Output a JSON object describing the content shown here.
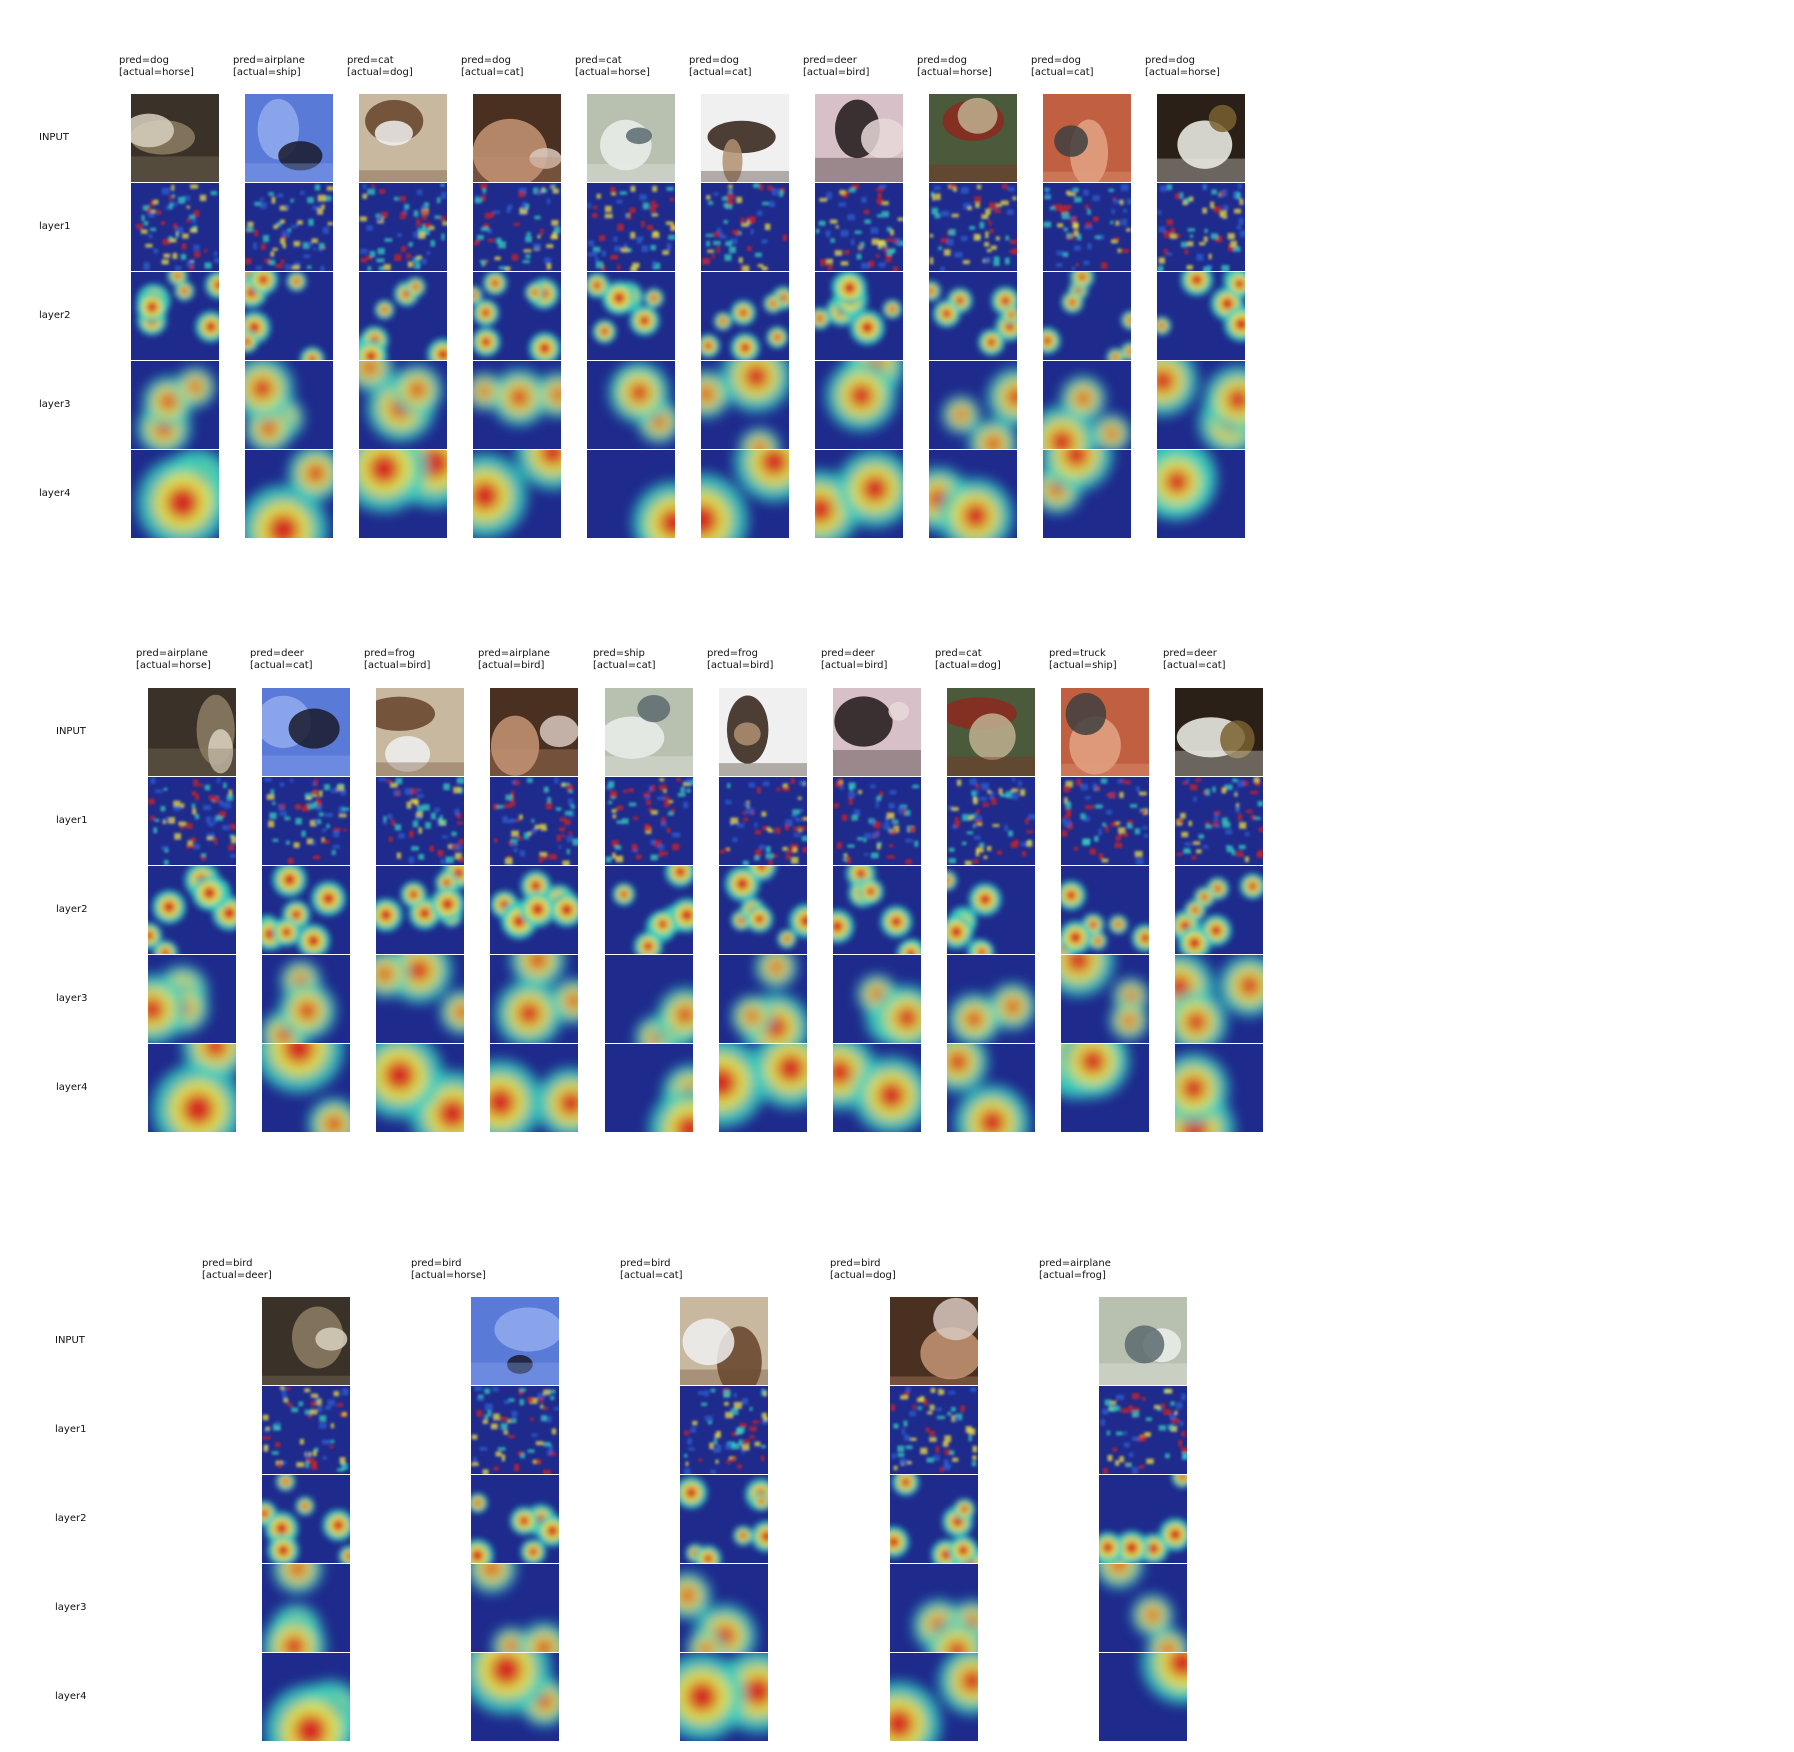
{
  "row_labels": [
    "INPUT",
    "layer1",
    "layer2",
    "layer3",
    "layer4"
  ],
  "grids": [
    {
      "panels": [
        {
          "pred": "pred=dog",
          "actual": "[actual=horse]"
        },
        {
          "pred": "pred=airplane",
          "actual": "[actual=ship]"
        },
        {
          "pred": "pred=cat",
          "actual": "[actual=dog]"
        },
        {
          "pred": "pred=dog",
          "actual": "[actual=cat]"
        },
        {
          "pred": "pred=cat",
          "actual": "[actual=horse]"
        },
        {
          "pred": "pred=dog",
          "actual": "[actual=cat]"
        },
        {
          "pred": "pred=deer",
          "actual": "[actual=bird]"
        },
        {
          "pred": "pred=dog",
          "actual": "[actual=horse]"
        },
        {
          "pred": "pred=dog",
          "actual": "[actual=cat]"
        },
        {
          "pred": "pred=dog",
          "actual": "[actual=horse]"
        }
      ]
    },
    {
      "panels": [
        {
          "pred": "pred=airplane",
          "actual": "[actual=horse]"
        },
        {
          "pred": "pred=deer",
          "actual": "[actual=cat]"
        },
        {
          "pred": "pred=frog",
          "actual": "[actual=bird]"
        },
        {
          "pred": "pred=airplane",
          "actual": "[actual=bird]"
        },
        {
          "pred": "pred=ship",
          "actual": "[actual=cat]"
        },
        {
          "pred": "pred=frog",
          "actual": "[actual=bird]"
        },
        {
          "pred": "pred=deer",
          "actual": "[actual=bird]"
        },
        {
          "pred": "pred=cat",
          "actual": "[actual=dog]"
        },
        {
          "pred": "pred=truck",
          "actual": "[actual=ship]"
        },
        {
          "pred": "pred=deer",
          "actual": "[actual=cat]"
        }
      ]
    },
    {
      "panels": [
        {
          "pred": "pred=bird",
          "actual": "[actual=deer]"
        },
        {
          "pred": "pred=bird",
          "actual": "[actual=horse]"
        },
        {
          "pred": "pred=bird",
          "actual": "[actual=cat]"
        },
        {
          "pred": "pred=bird",
          "actual": "[actual=dog]"
        },
        {
          "pred": "pred=airplane",
          "actual": "[actual=frog]"
        }
      ]
    }
  ],
  "colors": {
    "heat_background": "#1e2a8c",
    "heat_low": "#2f5fd0",
    "heat_mid": "#35d0c0",
    "heat_high": "#f0e040",
    "heat_peak": "#d42020"
  }
}
